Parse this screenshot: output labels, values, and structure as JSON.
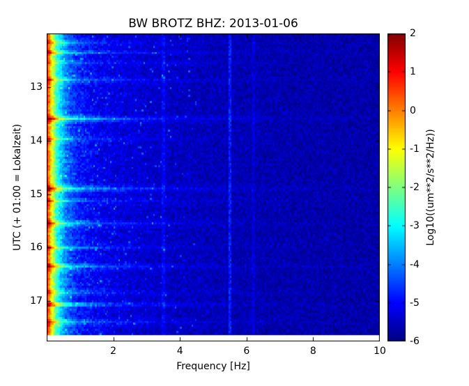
{
  "title": "BW BROTZ BHZ: 2013-01-06",
  "axes": {
    "xlabel": "Frequency [Hz]",
    "ylabel": "UTC (+ 01:00 = Lokalzeit)"
  },
  "colorbar": {
    "label": "Log10((um**2/s**2/Hz))",
    "ticks": [
      2,
      1,
      0,
      -1,
      -2,
      -3,
      -4,
      -5,
      -6
    ]
  },
  "chart_data": {
    "type": "heatmap",
    "subtype": "seismic-spectrogram",
    "title": "BW BROTZ BHZ: 2013-01-06",
    "xlabel": "Frequency [Hz]",
    "ylabel": "UTC (+ 01:00 = Lokalzeit)",
    "colorbar_label": "Log10((um**2/s**2/Hz))",
    "colormap": "jet",
    "x_range_hz": [
      0,
      10
    ],
    "x_ticks": [
      2,
      4,
      6,
      8,
      10
    ],
    "y_range_hours_utc": [
      12.0,
      17.75
    ],
    "y_ticks": [
      13,
      14,
      15,
      16,
      17
    ],
    "data_end_hour": 17.62,
    "value_range_log10": [
      -6,
      2
    ],
    "colorbar_ticks": [
      2,
      1,
      0,
      -1,
      -2,
      -3,
      -4,
      -5,
      -6
    ],
    "background_profile": {
      "base": -5.7,
      "a1": 6.0,
      "fscale1_hz": 0.3,
      "a2": 1.0,
      "fscale2_hz": 2.5,
      "noise_amp": 0.42
    },
    "events": [
      {
        "time_utc": 12.18,
        "strength": 0.6
      },
      {
        "time_utc": 12.35,
        "strength": 1.1
      },
      {
        "time_utc": 12.56,
        "strength": 0.6
      },
      {
        "time_utc": 12.87,
        "strength": 0.8
      },
      {
        "time_utc": 13.59,
        "strength": 1.6
      },
      {
        "time_utc": 13.98,
        "strength": 0.5
      },
      {
        "time_utc": 14.89,
        "strength": 1.5
      },
      {
        "time_utc": 15.12,
        "strength": 0.6
      },
      {
        "time_utc": 15.54,
        "strength": 1.0
      },
      {
        "time_utc": 15.99,
        "strength": 0.8
      },
      {
        "time_utc": 16.36,
        "strength": 1.2
      },
      {
        "time_utc": 16.84,
        "strength": 0.6
      },
      {
        "time_utc": 17.06,
        "strength": 0.9
      },
      {
        "time_utc": 17.38,
        "strength": 1.0
      }
    ],
    "spectral_lines_hz": [
      {
        "f": 3.5,
        "strength": 0.4
      },
      {
        "f": 5.5,
        "strength": 0.8
      },
      {
        "f": 6.2,
        "strength": 0.3
      }
    ]
  }
}
